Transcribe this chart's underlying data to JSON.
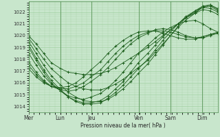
{
  "background_color": "#c8e6cc",
  "grid_color": "#99cc99",
  "line_color": "#1a5c1a",
  "marker_color": "#1a5c1a",
  "xlabel_text": "Pression niveau de la mer( hPa )",
  "ylim": [
    1013.5,
    1022.9
  ],
  "yticks": [
    1014,
    1015,
    1016,
    1017,
    1018,
    1019,
    1020,
    1021,
    1022
  ],
  "day_labels": [
    "Mer",
    "Lun",
    "Jeu",
    "Ven",
    "Sam",
    "Dim"
  ],
  "day_positions": [
    0,
    0.167,
    0.333,
    0.583,
    0.75,
    0.917
  ],
  "xlim": [
    0,
    1.0
  ],
  "series": [
    {
      "x": [
        0.0,
        0.04,
        0.08,
        0.12,
        0.17,
        0.21,
        0.25,
        0.29,
        0.33,
        0.38,
        0.42,
        0.46,
        0.5,
        0.54,
        0.58,
        0.63,
        0.67,
        0.71,
        0.75,
        0.79,
        0.83,
        0.88,
        0.92,
        0.96,
        1.0
      ],
      "y": [
        1020.0,
        1019.3,
        1018.5,
        1017.7,
        1017.2,
        1016.9,
        1016.8,
        1016.7,
        1016.7,
        1016.8,
        1017.0,
        1017.3,
        1017.7,
        1018.1,
        1018.5,
        1019.0,
        1019.5,
        1020.0,
        1020.5,
        1021.0,
        1021.5,
        1022.0,
        1022.4,
        1022.5,
        1022.1
      ]
    },
    {
      "x": [
        0.0,
        0.04,
        0.08,
        0.12,
        0.17,
        0.21,
        0.25,
        0.29,
        0.33,
        0.38,
        0.42,
        0.46,
        0.5,
        0.54,
        0.58,
        0.63,
        0.67,
        0.71,
        0.75,
        0.79,
        0.83,
        0.88,
        0.92,
        0.96,
        1.0
      ],
      "y": [
        1019.8,
        1018.9,
        1018.0,
        1017.2,
        1016.5,
        1016.0,
        1015.7,
        1015.5,
        1015.4,
        1015.4,
        1015.6,
        1015.9,
        1016.3,
        1016.8,
        1017.3,
        1017.9,
        1018.6,
        1019.3,
        1020.0,
        1020.7,
        1021.3,
        1021.9,
        1022.4,
        1022.6,
        1022.3
      ]
    },
    {
      "x": [
        0.0,
        0.04,
        0.08,
        0.12,
        0.17,
        0.21,
        0.25,
        0.29,
        0.33,
        0.38,
        0.42,
        0.46,
        0.5,
        0.54,
        0.58,
        0.63,
        0.67,
        0.71,
        0.75,
        0.79,
        0.83,
        0.88,
        0.92,
        0.96,
        1.0
      ],
      "y": [
        1019.5,
        1018.5,
        1017.5,
        1016.6,
        1015.8,
        1015.2,
        1014.8,
        1014.5,
        1014.4,
        1014.4,
        1014.6,
        1015.0,
        1015.5,
        1016.1,
        1016.8,
        1017.6,
        1018.4,
        1019.2,
        1020.0,
        1020.8,
        1021.5,
        1022.1,
        1022.5,
        1022.6,
        1022.2
      ]
    },
    {
      "x": [
        0.0,
        0.04,
        0.08,
        0.12,
        0.17,
        0.21,
        0.25,
        0.29,
        0.33,
        0.38,
        0.42,
        0.46,
        0.5,
        0.54,
        0.58,
        0.63,
        0.67,
        0.71,
        0.75,
        0.79,
        0.83,
        0.88,
        0.92,
        0.96,
        1.0
      ],
      "y": [
        1019.2,
        1018.1,
        1017.1,
        1016.2,
        1015.4,
        1014.8,
        1014.4,
        1014.2,
        1014.2,
        1014.3,
        1014.7,
        1015.2,
        1015.8,
        1016.5,
        1017.2,
        1018.0,
        1018.8,
        1019.6,
        1020.3,
        1021.0,
        1021.6,
        1022.1,
        1022.4,
        1022.3,
        1022.0
      ]
    },
    {
      "x": [
        0.0,
        0.04,
        0.08,
        0.12,
        0.17,
        0.21,
        0.25,
        0.29,
        0.33,
        0.38,
        0.42,
        0.46,
        0.5,
        0.54,
        0.58,
        0.63,
        0.67,
        0.71,
        0.75,
        0.79,
        0.83,
        0.88,
        0.92,
        0.96,
        1.0
      ],
      "y": [
        1019.0,
        1017.9,
        1016.9,
        1016.0,
        1015.3,
        1014.8,
        1014.5,
        1014.3,
        1014.3,
        1014.5,
        1014.9,
        1015.5,
        1016.1,
        1016.9,
        1017.7,
        1018.5,
        1019.2,
        1019.9,
        1020.5,
        1021.0,
        1021.5,
        1021.9,
        1022.2,
        1022.1,
        1021.8
      ]
    },
    {
      "x": [
        0.0,
        0.04,
        0.08,
        0.12,
        0.17,
        0.21,
        0.25,
        0.29,
        0.33,
        0.38,
        0.42,
        0.46,
        0.5,
        0.54,
        0.58,
        0.63,
        0.67,
        0.71,
        0.75,
        0.79,
        0.83,
        0.88,
        0.92,
        0.96,
        1.0
      ],
      "y": [
        1018.5,
        1017.5,
        1016.6,
        1015.9,
        1015.3,
        1014.9,
        1014.7,
        1014.6,
        1014.8,
        1015.1,
        1015.6,
        1016.2,
        1016.9,
        1017.7,
        1018.5,
        1019.2,
        1019.8,
        1020.3,
        1020.7,
        1021.0,
        1021.2,
        1021.3,
        1021.0,
        1020.6,
        1020.3
      ]
    },
    {
      "x": [
        0.0,
        0.04,
        0.08,
        0.12,
        0.17,
        0.21,
        0.25,
        0.29,
        0.33,
        0.38,
        0.42,
        0.46,
        0.5,
        0.54,
        0.58,
        0.63,
        0.67,
        0.71,
        0.75,
        0.79,
        0.83,
        0.88,
        0.92,
        0.96,
        1.0
      ],
      "y": [
        1017.8,
        1016.9,
        1016.2,
        1015.7,
        1015.4,
        1015.3,
        1015.4,
        1015.7,
        1016.1,
        1016.7,
        1017.3,
        1018.0,
        1018.7,
        1019.3,
        1019.8,
        1020.2,
        1020.5,
        1020.6,
        1020.5,
        1020.3,
        1020.0,
        1019.8,
        1019.8,
        1020.0,
        1020.2
      ]
    },
    {
      "x": [
        0.0,
        0.04,
        0.08,
        0.12,
        0.17,
        0.21,
        0.25,
        0.29,
        0.33,
        0.38,
        0.42,
        0.46,
        0.5,
        0.54,
        0.58,
        0.63,
        0.67,
        0.71,
        0.75,
        0.79,
        0.83,
        0.88,
        0.92,
        0.96,
        1.0
      ],
      "y": [
        1017.5,
        1016.7,
        1016.1,
        1015.7,
        1015.5,
        1015.5,
        1015.7,
        1016.0,
        1016.5,
        1017.1,
        1017.8,
        1018.5,
        1019.1,
        1019.6,
        1020.0,
        1020.3,
        1020.4,
        1020.4,
        1020.3,
        1020.1,
        1019.9,
        1019.8,
        1019.9,
        1020.1,
        1020.3
      ]
    },
    {
      "x": [
        0.0,
        0.04,
        0.08,
        0.12,
        0.17,
        0.21,
        0.25,
        0.29,
        0.33,
        0.38,
        0.42,
        0.46,
        0.5,
        0.54,
        0.58,
        0.63,
        0.67,
        0.71,
        0.75,
        0.79,
        0.83,
        0.88,
        0.92,
        0.96,
        1.0
      ],
      "y": [
        1017.2,
        1016.5,
        1016.0,
        1015.7,
        1015.6,
        1015.7,
        1016.0,
        1016.5,
        1017.1,
        1017.8,
        1018.5,
        1019.1,
        1019.6,
        1020.0,
        1020.3,
        1020.4,
        1020.4,
        1020.2,
        1020.0,
        1019.8,
        1019.7,
        1019.7,
        1019.9,
        1020.1,
        1020.2
      ]
    }
  ]
}
